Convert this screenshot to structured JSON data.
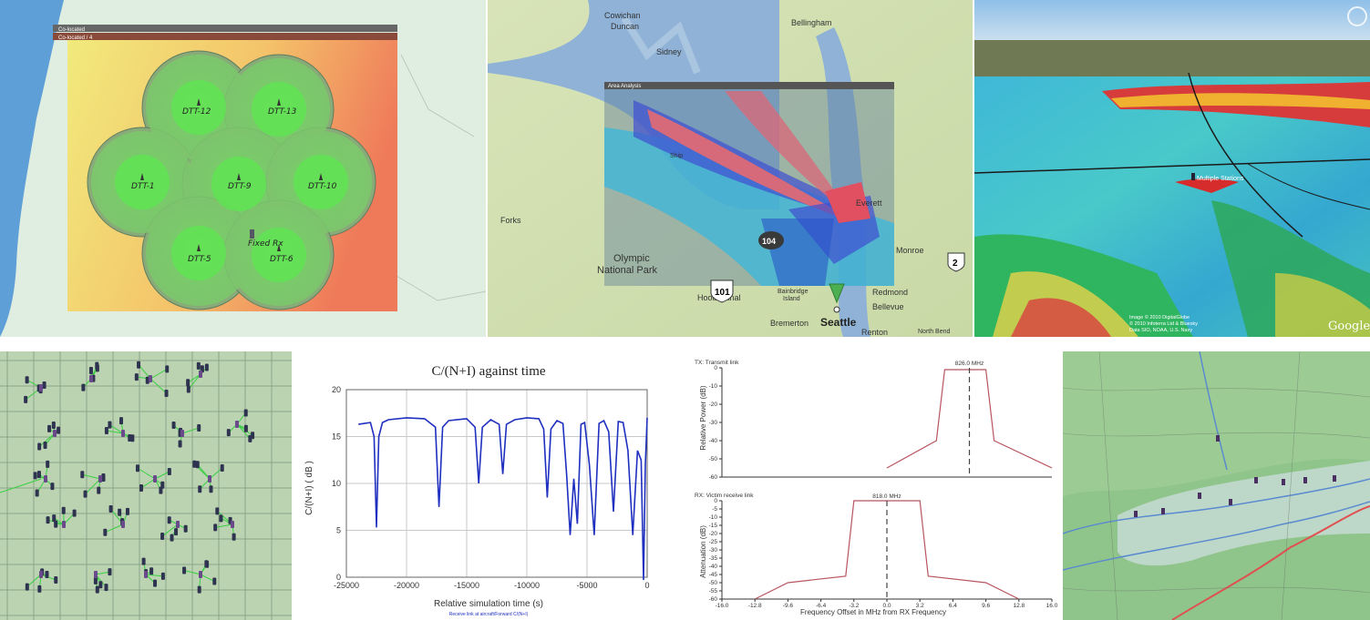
{
  "coverage_panel": {
    "window_title": "Co-located",
    "window_subtitle": "Co-located / 4",
    "transmitters": [
      {
        "label": "DTT-12"
      },
      {
        "label": "DTT-13"
      },
      {
        "label": "DTT-1"
      },
      {
        "label": "DTT-9"
      },
      {
        "label": "DTT-10"
      },
      {
        "label": "DTT-5"
      },
      {
        "label": "DTT-6"
      }
    ],
    "receiver_label": "Fixed Rx"
  },
  "area_map_panel": {
    "window_title": "Area Analysis",
    "place_labels": {
      "bellingham": "Bellingham",
      "seattle": "Seattle",
      "bellevue": "Bellevue",
      "redmond": "Redmond",
      "renton": "Renton",
      "everett": "Everett",
      "monroe": "Monroe",
      "forks": "Forks",
      "olympic": "Olympic",
      "national_park": "National Park",
      "hood_canal": "Hood Canal",
      "bremerton": "Bremerton",
      "ship": "Ship",
      "bainbridge": "Bainbridge",
      "island": "Island",
      "cowichan": "Cowichan",
      "duncan": "Duncan",
      "sidney": "Sidney",
      "north_bend": "North Bend"
    },
    "shields": {
      "us101": "101",
      "sr104": "104",
      "us2": "2"
    }
  },
  "terrain_panel": {
    "station_label": "Multiple Stations",
    "attribution_lines": [
      "Image © 2010 DigitalGlobe",
      "© 2010 Infoterra Ltd & Bluesky",
      "Data SIO, NOAA, U.S. Navy"
    ],
    "brand": "Google"
  },
  "network_panel": {},
  "cni_chart": {
    "title": "C/(N+I) against time",
    "xlabel": "Relative simulation time (s)",
    "ylabel": "C/(N+I) ( dB )",
    "xticks": [
      "-25000",
      "-20000",
      "-15000",
      "-10000",
      "-5000",
      "0"
    ],
    "yticks": [
      "0",
      "5",
      "10",
      "15",
      "20"
    ],
    "legend": "Receive link at aircraft/Forward C/(N+I)",
    "series_color": "#1f2fbf"
  },
  "spectrum_chart": {
    "top": {
      "title": "TX: Transmit link",
      "freq_label": "826.0 MHz",
      "ylabel": "Relative Power (dB)",
      "yticks": [
        "0",
        "-10",
        "-20",
        "-30",
        "-40",
        "-50",
        "-60"
      ]
    },
    "bottom": {
      "title": "RX: Victim receive link",
      "freq_label": "818.0 MHz",
      "ylabel": "Attenuation (dB)",
      "yticks": [
        "0",
        "-5",
        "-10",
        "-15",
        "-20",
        "-25",
        "-30",
        "-35",
        "-40",
        "-45",
        "-50",
        "-55",
        "-60"
      ]
    },
    "xticks": [
      "-16.0",
      "-12.8",
      "-9.6",
      "-6.4",
      "-3.2",
      "0.0",
      "3.2",
      "6.4",
      "9.6",
      "12.8",
      "16.0"
    ],
    "xlabel": "Frequency Offset in MHz from RX Frequency",
    "line_color": "#b85560"
  },
  "chart_data": [
    {
      "type": "line",
      "title": "C/(N+I) against time",
      "xlabel": "Relative simulation time (s)",
      "ylabel": "C/(N+I) ( dB )",
      "xlim": [
        -25000,
        0
      ],
      "ylim": [
        0,
        20
      ],
      "grid": true,
      "legend": "bottom",
      "series": [
        {
          "name": "Receive link at aircraft/Forward C/(N+I)",
          "x": [
            -24000,
            -23500,
            -23000,
            -22700,
            -22500,
            -22300,
            -22000,
            -21500,
            -20000,
            -18500,
            -17600,
            -17300,
            -17000,
            -16500,
            -15000,
            -14300,
            -14000,
            -13700,
            -13000,
            -12300,
            -12000,
            -11700,
            -11000,
            -10000,
            -9000,
            -8600,
            -8300,
            -8000,
            -7500,
            -7000,
            -6700,
            -6400,
            -6100,
            -5800,
            -5500,
            -5200,
            -4800,
            -4400,
            -4000,
            -3600,
            -3200,
            -2800,
            -2400,
            -2000,
            -1600,
            -1200,
            -800,
            -500,
            -300,
            -150,
            0
          ],
          "y": [
            16.3,
            16.4,
            16.5,
            15.0,
            5.3,
            15.0,
            16.5,
            16.8,
            17.0,
            16.9,
            16.0,
            7.5,
            16.0,
            16.7,
            16.9,
            16.0,
            10.0,
            16.0,
            16.8,
            16.3,
            11.0,
            16.3,
            16.8,
            17.0,
            16.9,
            15.8,
            8.5,
            15.8,
            16.7,
            16.4,
            11.0,
            4.5,
            10.5,
            5.7,
            16.3,
            16.5,
            12.0,
            4.5,
            16.4,
            16.7,
            15.5,
            7.0,
            16.6,
            16.5,
            13.5,
            4.5,
            13.5,
            12.5,
            -0.3,
            12.0,
            17.0
          ]
        }
      ]
    },
    {
      "type": "line",
      "title": "TX: Transmit link",
      "xlabel": "Frequency Offset in MHz from RX Frequency",
      "ylabel": "Relative Power (dB)",
      "xlim": [
        -16,
        16
      ],
      "ylim": [
        -60,
        0
      ],
      "annotations": [
        "826.0 MHz"
      ],
      "series": [
        {
          "x": [
            0,
            4.8,
            5.6,
            6.4,
            9.6,
            10.4,
            16.0
          ],
          "y": [
            -55,
            -40,
            -1,
            -1,
            -1,
            -40,
            -55
          ]
        }
      ]
    },
    {
      "type": "line",
      "title": "RX: Victim receive link",
      "xlabel": "Frequency Offset in MHz from RX Frequency",
      "ylabel": "Attenuation (dB)",
      "xlim": [
        -16,
        16
      ],
      "ylim": [
        -60,
        0
      ],
      "annotations": [
        "818.0 MHz"
      ],
      "series": [
        {
          "x": [
            -12.8,
            -9.6,
            -4.0,
            -3.2,
            3.2,
            4.0,
            9.6,
            12.8
          ],
          "y": [
            -60,
            -50,
            -46,
            0,
            0,
            -46,
            -50,
            -60
          ]
        }
      ]
    }
  ]
}
